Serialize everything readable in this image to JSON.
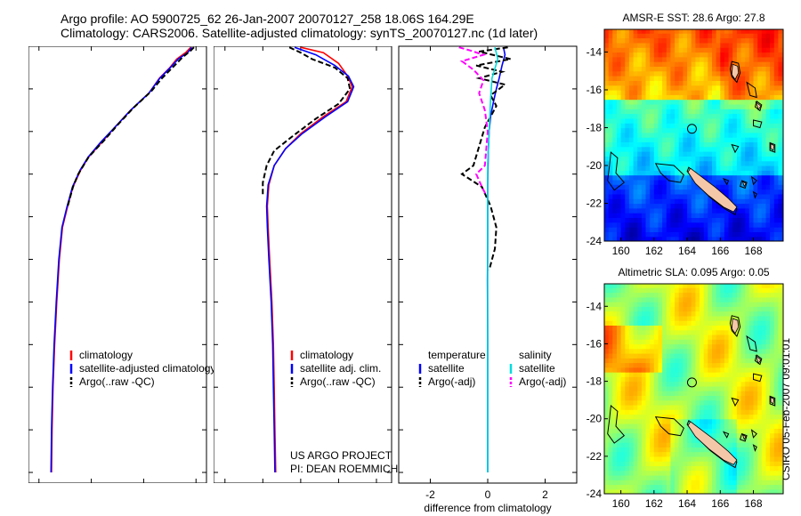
{
  "header": {
    "line1": "Argo profile: AO 5900725_62 26-Jan-2007 20070127_258 18.06S 164.29E",
    "line2": "Climatology: CARS2006. Satellite-adjusted climatology: synTS_20070127.nc (1d later)"
  },
  "side_label": "CSIRO 05-Feb-2007 09:01:01",
  "colors": {
    "climatology": "#ff0000",
    "satellite": "#0000ff",
    "argo": "#000000",
    "salinity_sat": "#00dddd",
    "salinity_argo": "#ff00ff",
    "coast": "#000000",
    "island": "#f5c7a9"
  },
  "chart_data": [
    {
      "type": "line",
      "xlabel": "temperature",
      "ylabel": "",
      "xlim": [
        -2,
        32
      ],
      "ylim": [
        2050,
        0
      ],
      "xticks": [
        0,
        10,
        20,
        30
      ],
      "yticks": [
        0,
        200,
        400,
        600,
        800,
        1000,
        1200,
        1400,
        1600,
        1800,
        2000
      ],
      "legend": [
        "climatology",
        "satellite-adjusted climatology",
        "Argo(..raw -QC)"
      ],
      "legend_location": "lower-left",
      "series": [
        {
          "name": "climatology",
          "style": "solid",
          "color": "#ff0000",
          "points": [
            [
              29.0,
              5
            ],
            [
              28.0,
              30
            ],
            [
              26.3,
              60
            ],
            [
              25.0,
              100
            ],
            [
              23.0,
              150
            ],
            [
              21.0,
              220
            ],
            [
              17.5,
              300
            ],
            [
              14.5,
              380
            ],
            [
              12.0,
              450
            ],
            [
              9.5,
              520
            ],
            [
              8.0,
              580
            ],
            [
              6.5,
              660
            ],
            [
              5.5,
              750
            ],
            [
              4.5,
              850
            ],
            [
              3.9,
              1000
            ],
            [
              3.4,
              1200
            ],
            [
              3.0,
              1400
            ],
            [
              2.7,
              1600
            ],
            [
              2.5,
              1800
            ],
            [
              2.4,
              2000
            ]
          ]
        },
        {
          "name": "satellite-adjusted climatology",
          "style": "solid",
          "color": "#0000ff",
          "points": [
            [
              29.2,
              5
            ],
            [
              28.4,
              30
            ],
            [
              26.6,
              60
            ],
            [
              25.1,
              100
            ],
            [
              23.1,
              150
            ],
            [
              21.0,
              220
            ],
            [
              17.5,
              300
            ],
            [
              14.5,
              380
            ],
            [
              11.8,
              450
            ],
            [
              9.4,
              520
            ],
            [
              7.9,
              580
            ],
            [
              6.4,
              660
            ],
            [
              5.4,
              750
            ],
            [
              4.4,
              850
            ],
            [
              3.8,
              1000
            ],
            [
              3.3,
              1200
            ],
            [
              2.9,
              1400
            ],
            [
              2.6,
              1600
            ],
            [
              2.4,
              1800
            ],
            [
              2.3,
              2000
            ]
          ]
        },
        {
          "name": "Argo(..raw -QC)",
          "style": "dashed",
          "color": "#000000",
          "points": [
            [
              29.6,
              5
            ],
            [
              29.0,
              20
            ],
            [
              27.5,
              50
            ],
            [
              25.5,
              100
            ],
            [
              23.5,
              150
            ],
            [
              21.5,
              210
            ],
            [
              18.0,
              290
            ],
            [
              15.0,
              370
            ],
            [
              12.5,
              440
            ],
            [
              9.5,
              520
            ],
            [
              7.5,
              600
            ],
            [
              6.5,
              660
            ],
            [
              5.5,
              750
            ]
          ]
        }
      ]
    },
    {
      "type": "line",
      "xlabel": "salinity",
      "xlim": [
        33.85,
        36.2
      ],
      "ylim": [
        2050,
        0
      ],
      "xticks": [
        34,
        34.5,
        35,
        35.5,
        36
      ],
      "yticks": [
        0,
        200,
        400,
        600,
        800,
        1000,
        1200,
        1400,
        1600,
        1800,
        2000
      ],
      "legend": [
        "climatology",
        "satellite adj. clim.",
        "Argo(..raw -QC)"
      ],
      "legend_location": "lower-right",
      "annotation": [
        "US ARGO PROJECT",
        "PI: DEAN ROEMMICH"
      ],
      "series": [
        {
          "name": "climatology",
          "style": "solid",
          "color": "#ff0000",
          "points": [
            [
              35.0,
              5
            ],
            [
              35.3,
              30
            ],
            [
              35.5,
              80
            ],
            [
              35.62,
              140
            ],
            [
              35.68,
              190
            ],
            [
              35.6,
              260
            ],
            [
              35.3,
              330
            ],
            [
              35.0,
              410
            ],
            [
              34.8,
              480
            ],
            [
              34.65,
              560
            ],
            [
              34.58,
              650
            ],
            [
              34.56,
              750
            ],
            [
              34.57,
              850
            ],
            [
              34.59,
              1000
            ],
            [
              34.62,
              1200
            ],
            [
              34.64,
              1400
            ],
            [
              34.65,
              1600
            ],
            [
              34.66,
              1800
            ],
            [
              34.67,
              2000
            ]
          ]
        },
        {
          "name": "satellite adj. clim.",
          "style": "solid",
          "color": "#0000ff",
          "points": [
            [
              34.92,
              5
            ],
            [
              35.2,
              40
            ],
            [
              35.45,
              90
            ],
            [
              35.63,
              140
            ],
            [
              35.7,
              190
            ],
            [
              35.62,
              260
            ],
            [
              35.33,
              330
            ],
            [
              35.02,
              410
            ],
            [
              34.8,
              480
            ],
            [
              34.65,
              560
            ],
            [
              34.57,
              650
            ],
            [
              34.55,
              750
            ],
            [
              34.56,
              850
            ],
            [
              34.58,
              1000
            ],
            [
              34.61,
              1200
            ],
            [
              34.63,
              1400
            ],
            [
              34.64,
              1600
            ],
            [
              34.65,
              1800
            ],
            [
              34.66,
              2000
            ]
          ]
        },
        {
          "name": "Argo(..raw -QC)",
          "style": "dashed",
          "color": "#000000",
          "points": [
            [
              34.85,
              5
            ],
            [
              35.0,
              30
            ],
            [
              35.15,
              60
            ],
            [
              35.45,
              100
            ],
            [
              35.62,
              150
            ],
            [
              35.65,
              200
            ],
            [
              35.5,
              270
            ],
            [
              35.2,
              340
            ],
            [
              34.9,
              420
            ],
            [
              34.65,
              490
            ],
            [
              34.55,
              560
            ],
            [
              34.5,
              640
            ],
            [
              34.5,
              700
            ]
          ]
        }
      ]
    },
    {
      "type": "line",
      "xlabel": "difference from climatology",
      "xlim": [
        -3.1,
        3.1
      ],
      "ylim": [
        2050,
        0
      ],
      "xticks": [
        -2,
        0,
        2
      ],
      "yticks": [
        0,
        200,
        400,
        600,
        800,
        1000,
        1200,
        1400,
        1600,
        1800,
        2000
      ],
      "legend_columns": [
        {
          "heading": "temperature",
          "items": [
            "satellite",
            "Argo(-adj)"
          ]
        },
        {
          "heading": "salinity",
          "items": [
            "satellite",
            "Argo(-adj)"
          ]
        }
      ],
      "legend_location": "lower-center",
      "series": [
        {
          "name": "temperature satellite",
          "style": "solid",
          "color": "#0000ff",
          "points": [
            [
              0.55,
              5
            ],
            [
              0.6,
              40
            ],
            [
              0.5,
              90
            ],
            [
              0.4,
              150
            ],
            [
              0.3,
              200
            ],
            [
              0.2,
              260
            ],
            [
              0.1,
              330
            ],
            [
              0.05,
              400
            ],
            [
              0.02,
              500
            ],
            [
              0.0,
              650
            ],
            [
              0.0,
              900
            ],
            [
              -0.01,
              1100
            ],
            [
              0.0,
              1400
            ],
            [
              0.0,
              2000
            ]
          ]
        },
        {
          "name": "temperature Argo(-adj)",
          "style": "dashed",
          "color": "#000000",
          "points": [
            [
              0.7,
              5
            ],
            [
              -0.3,
              25
            ],
            [
              0.8,
              60
            ],
            [
              -0.4,
              90
            ],
            [
              0.5,
              120
            ],
            [
              -0.3,
              150
            ],
            [
              0.6,
              180
            ],
            [
              0.1,
              230
            ],
            [
              0.3,
              280
            ],
            [
              -0.1,
              380
            ],
            [
              -0.5,
              560
            ],
            [
              -0.9,
              600
            ],
            [
              -0.2,
              660
            ],
            [
              0.1,
              750
            ],
            [
              0.3,
              850
            ],
            [
              0.25,
              950
            ],
            [
              0.05,
              1050
            ]
          ]
        },
        {
          "name": "salinity satellite",
          "style": "solid",
          "color": "#00dddd",
          "points": [
            [
              0.25,
              5
            ],
            [
              0.35,
              60
            ],
            [
              0.15,
              150
            ],
            [
              0.1,
              250
            ],
            [
              0.05,
              400
            ],
            [
              0.0,
              550
            ],
            [
              0.0,
              800
            ],
            [
              0.0,
              2000
            ]
          ]
        },
        {
          "name": "salinity Argo(-adj)",
          "style": "dashed",
          "color": "#ff00ff",
          "points": [
            [
              -1.0,
              5
            ],
            [
              -0.6,
              20
            ],
            [
              -0.15,
              40
            ],
            [
              -0.9,
              70
            ],
            [
              -0.5,
              110
            ],
            [
              -0.15,
              160
            ],
            [
              -0.3,
              220
            ],
            [
              -0.1,
              300
            ],
            [
              0.0,
              400
            ],
            [
              -0.05,
              480
            ],
            [
              -0.1,
              560
            ],
            [
              -0.4,
              600
            ],
            [
              -0.2,
              660
            ],
            [
              -0.05,
              700
            ]
          ]
        }
      ]
    },
    {
      "type": "heatmap",
      "title": "AMSR-E SST: 28.6 Argo: 27.8",
      "xlim": [
        159,
        169.8
      ],
      "ylim": [
        -24,
        -12.8
      ],
      "xticks": [
        160,
        162,
        164,
        166,
        168
      ],
      "yticks": [
        -14,
        -16,
        -18,
        -20,
        -22,
        -24
      ],
      "argo_position": [
        164.29,
        -18.06
      ]
    },
    {
      "type": "heatmap",
      "title": "Altimetric SLA: 0.095 Argo: 0.05",
      "xlim": [
        159,
        169.8
      ],
      "ylim": [
        -24,
        -12.8
      ],
      "xticks": [
        160,
        162,
        164,
        166,
        168
      ],
      "yticks": [
        -14,
        -16,
        -18,
        -20,
        -22,
        -24
      ],
      "argo_position": [
        164.29,
        -18.06
      ]
    }
  ]
}
